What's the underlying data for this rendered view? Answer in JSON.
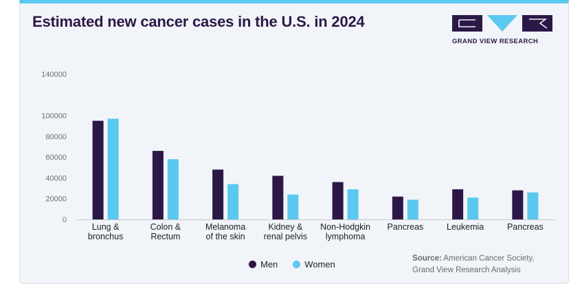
{
  "header": {
    "title": "Estimated new cancer cases in the U.S. in 2024"
  },
  "logo": {
    "text": "GRAND VIEW RESEARCH",
    "icon": "grand-view-research-logo"
  },
  "colors": {
    "men": "#2c1846",
    "women": "#5bc8f0",
    "accent": "#5bc8f0"
  },
  "chart_data": {
    "type": "bar",
    "title": "Estimated new cancer cases in the U.S. in 2024",
    "xlabel": "",
    "ylabel": "",
    "ylim": [
      0,
      140000
    ],
    "yticks": [
      "0",
      "20000",
      "40000",
      "60000",
      "80000",
      "100000",
      "140000"
    ],
    "ytick_values": [
      0,
      20000,
      40000,
      60000,
      80000,
      100000,
      140000
    ],
    "categories": [
      [
        "Lung &",
        "bronchus"
      ],
      [
        "Colon &",
        "Rectum"
      ],
      [
        "Melanoma",
        "of the skin"
      ],
      [
        "Kidney &",
        "renal pelvis"
      ],
      [
        "Non-Hodgkin",
        "lymphoma"
      ],
      [
        "Pancreas"
      ],
      [
        "Leukemia"
      ],
      [
        "Pancreas"
      ]
    ],
    "series": [
      {
        "name": "Men",
        "color": "#2c1846",
        "values": [
          95000,
          66000,
          48000,
          42000,
          36000,
          22000,
          29000,
          28000
        ]
      },
      {
        "name": "Women",
        "color": "#5bc8f0",
        "values": [
          97000,
          58000,
          34000,
          24000,
          29000,
          19000,
          21000,
          26000
        ]
      }
    ],
    "legend_position": "bottom-center",
    "grid": false
  },
  "legend": {
    "men": "Men",
    "women": "Women"
  },
  "source": {
    "label": "Source:",
    "line1": "American Cancer Society,",
    "line2": "Grand View Research Analysis"
  }
}
